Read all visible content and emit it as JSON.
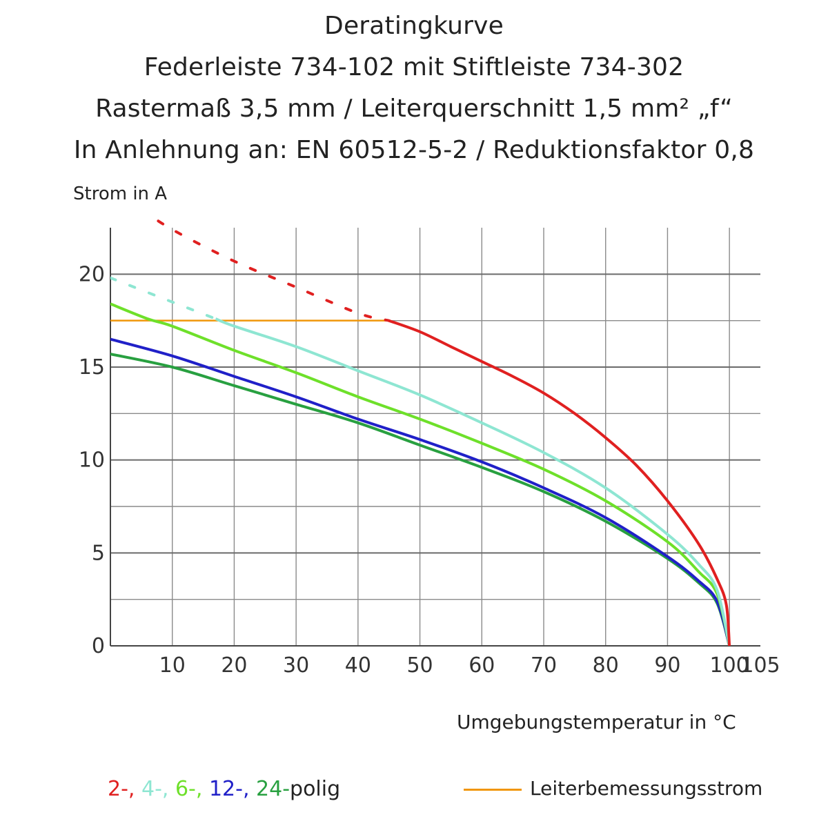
{
  "chart_data": {
    "type": "line",
    "title": "Deratingkurve",
    "subtitles": [
      "Federleiste 734-102 mit Stiftleiste 734-302",
      "Rastermaß 3,5 mm / Leiterquerschnitt 1,5 mm² „f“",
      "In Anlehnung an: EN 60512-5-2 / Reduktionsfaktor 0,8"
    ],
    "xlabel": "Umgebungstemperatur in °C",
    "ylabel": "Strom in A",
    "xlim": [
      0,
      105
    ],
    "ylim": [
      0,
      22.5
    ],
    "xticks": [
      10,
      20,
      30,
      40,
      50,
      60,
      70,
      80,
      90,
      100,
      105
    ],
    "yticks": [
      0,
      5,
      10,
      15,
      20
    ],
    "grid": true,
    "series": [
      {
        "name": "2-polig",
        "color": "#e02020",
        "x": [
          5,
          10,
          20,
          30,
          40,
          45,
          50,
          55,
          60,
          65,
          70,
          75,
          80,
          85,
          90,
          95,
          98,
          99.5,
          100
        ],
        "values": [
          23.5,
          22.4,
          20.7,
          19.3,
          17.9,
          17.5,
          16.9,
          16.1,
          15.3,
          14.5,
          13.6,
          12.5,
          11.2,
          9.7,
          7.8,
          5.5,
          3.6,
          2.2,
          0
        ],
        "dotted_until_x": 45
      },
      {
        "name": "4-polig",
        "color": "#8ee6d2",
        "x": [
          0,
          10,
          17,
          20,
          30,
          40,
          50,
          60,
          70,
          80,
          90,
          95,
          98,
          100
        ],
        "values": [
          19.8,
          18.5,
          17.6,
          17.2,
          16.1,
          14.8,
          13.5,
          12.0,
          10.4,
          8.5,
          6.0,
          4.4,
          3.0,
          0
        ],
        "dotted_until_x": 17
      },
      {
        "name": "6-polig",
        "color": "#6ee02a",
        "x": [
          0,
          6,
          10,
          20,
          30,
          40,
          50,
          60,
          70,
          80,
          90,
          95,
          98,
          100
        ],
        "values": [
          18.4,
          17.6,
          17.2,
          15.9,
          14.7,
          13.4,
          12.2,
          10.9,
          9.5,
          7.8,
          5.6,
          4.0,
          2.8,
          0
        ]
      },
      {
        "name": "12-polig",
        "color": "#2020c8",
        "x": [
          0,
          10,
          20,
          30,
          40,
          50,
          60,
          70,
          80,
          90,
          95,
          98,
          100
        ],
        "values": [
          16.5,
          15.6,
          14.5,
          13.4,
          12.2,
          11.1,
          9.9,
          8.5,
          6.9,
          4.8,
          3.5,
          2.4,
          0
        ]
      },
      {
        "name": "24-polig",
        "color": "#28a040",
        "x": [
          0,
          10,
          20,
          30,
          40,
          50,
          60,
          70,
          80,
          90,
          95,
          98,
          100
        ],
        "values": [
          15.7,
          15.0,
          14.0,
          13.0,
          12.0,
          10.8,
          9.6,
          8.3,
          6.7,
          4.7,
          3.4,
          2.3,
          0
        ]
      }
    ],
    "reference_line": {
      "name": "Leiterbemessungsstrom",
      "color": "#f0960a",
      "x": [
        0,
        45
      ],
      "values": [
        17.5,
        17.5
      ]
    },
    "legend": {
      "placement": "bottom",
      "poles_text": [
        {
          "text": "2-, ",
          "color": "#e02020"
        },
        {
          "text": "4-, ",
          "color": "#8ee6d2"
        },
        {
          "text": "6-, ",
          "color": "#6ee02a"
        },
        {
          "text": "12-, ",
          "color": "#2020c8"
        },
        {
          "text": "24-",
          "color": "#28a040"
        },
        {
          "text": "polig",
          "color": "#222222"
        }
      ],
      "reference_label": "Leiterbemessungsstrom"
    }
  }
}
